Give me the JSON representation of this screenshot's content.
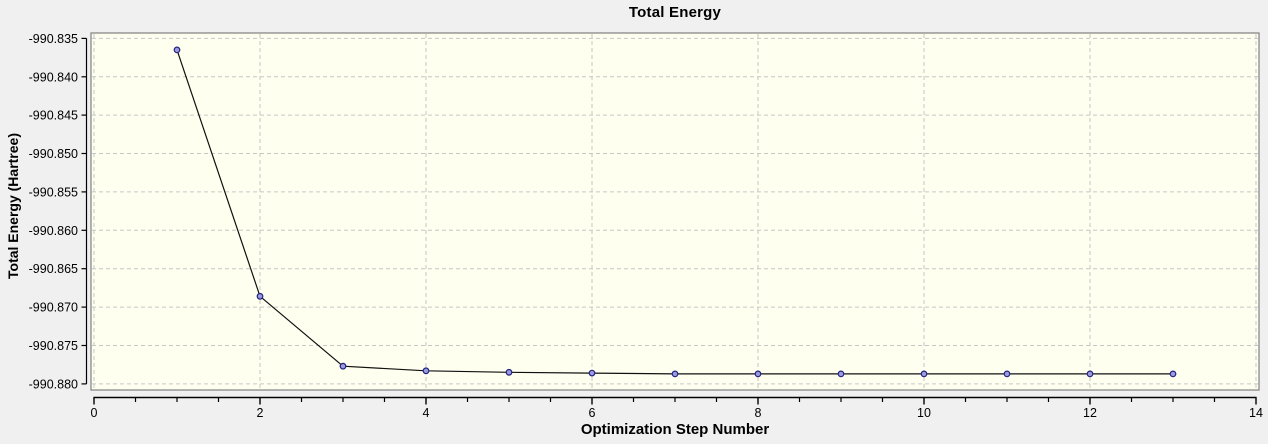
{
  "chart_data": {
    "type": "line",
    "title": "Total Energy",
    "xlabel": "Optimization Step Number",
    "ylabel": "Total Energy (Hartree)",
    "x": [
      1,
      2,
      3,
      4,
      5,
      6,
      7,
      8,
      9,
      10,
      11,
      12,
      13
    ],
    "y": [
      -990.8365,
      -990.8686,
      -990.8777,
      -990.8783,
      -990.8785,
      -990.8786,
      -990.8787,
      -990.8787,
      -990.8787,
      -990.8787,
      -990.8787,
      -990.8787,
      -990.8787
    ],
    "xlim": [
      0,
      14
    ],
    "ylim": [
      -990.8808,
      -990.8343
    ],
    "x_major_ticks": [
      0,
      2,
      4,
      6,
      8,
      10,
      12,
      14
    ],
    "x_tick_labels": [
      "0",
      "2",
      "4",
      "6",
      "8",
      "10",
      "12",
      "14"
    ],
    "x_minor_tick_step": 0.5,
    "y_major_ticks": [
      -990.835,
      -990.84,
      -990.845,
      -990.85,
      -990.855,
      -990.86,
      -990.865,
      -990.87,
      -990.875,
      -990.88
    ],
    "y_tick_labels": [
      "-990.835",
      "-990.840",
      "-990.845",
      "-990.850",
      "-990.855",
      "-990.860",
      "-990.865",
      "-990.870",
      "-990.875",
      "-990.880"
    ],
    "grid": "dashed",
    "legend": "none",
    "marker": "circle",
    "colors": {
      "figure_bg": "#f0f0f0",
      "plot_bg": "#fffff0",
      "plot_border": "#808080",
      "grid": "#c6c6c6",
      "line": "#101010",
      "marker_fill": "#9a9ade",
      "marker_stroke": "#22227e",
      "axis": "#000000",
      "text": "#000000"
    }
  }
}
